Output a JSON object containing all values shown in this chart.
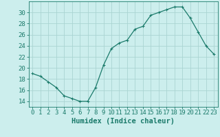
{
  "x": [
    0,
    1,
    2,
    3,
    4,
    5,
    6,
    7,
    8,
    9,
    10,
    11,
    12,
    13,
    14,
    15,
    16,
    17,
    18,
    19,
    20,
    21,
    22,
    23
  ],
  "y": [
    19,
    18.5,
    17.5,
    16.5,
    15,
    14.5,
    14,
    14,
    16.5,
    20.5,
    23.5,
    24.5,
    25,
    27,
    27.5,
    29.5,
    30,
    30.5,
    31,
    31,
    29,
    26.5,
    24,
    22.5
  ],
  "line_color": "#1a7a6a",
  "marker": "+",
  "marker_color": "#1a7a6a",
  "bg_color": "#cceeed",
  "grid_color": "#aad4d2",
  "xlabel": "Humidex (Indice chaleur)",
  "ylabel_ticks": [
    14,
    16,
    18,
    20,
    22,
    24,
    26,
    28,
    30
  ],
  "ylim": [
    13,
    32
  ],
  "xlim": [
    -0.5,
    23.5
  ],
  "tick_color": "#1a7a6a",
  "label_fontsize": 7.5,
  "tick_fontsize": 6.5
}
